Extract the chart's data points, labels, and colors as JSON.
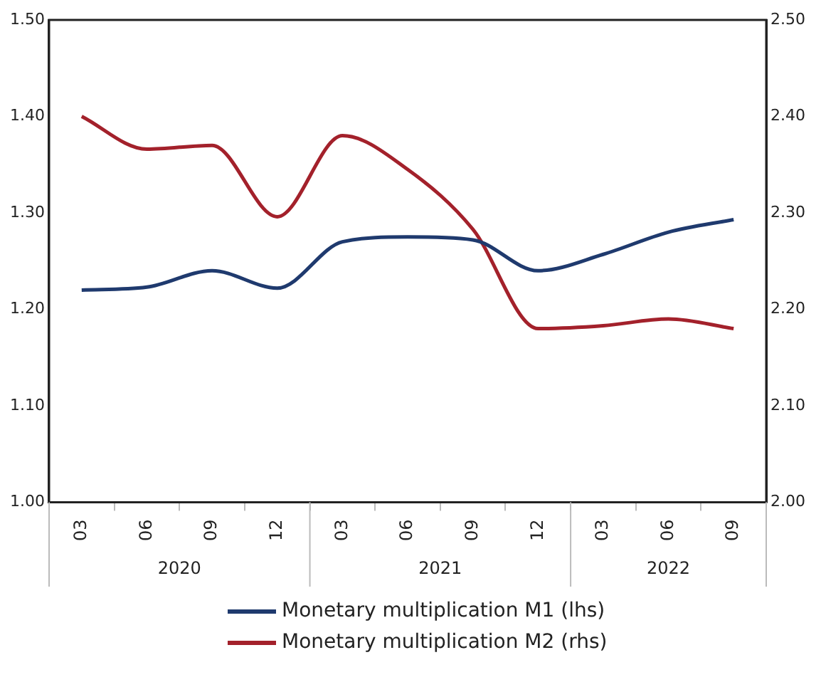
{
  "chart_data": {
    "type": "line",
    "categories": [
      "03",
      "06",
      "09",
      "12",
      "03",
      "06",
      "09",
      "12",
      "03",
      "06",
      "09"
    ],
    "series": [
      {
        "name": "Monetary multiplication M1 (lhs)",
        "color": "#1f3a6e",
        "values": [
          1.22,
          1.223,
          1.24,
          1.222,
          1.27,
          1.275,
          1.272,
          1.24,
          1.257,
          1.28,
          1.293
        ]
      },
      {
        "name": "Monetary multiplication M2 (rhs)",
        "color": "#a3212b",
        "axis": "y2",
        "values": [
          2.4,
          2.366,
          2.37,
          2.296,
          2.38,
          2.345,
          2.283,
          2.18,
          2.183,
          2.19,
          2.18
        ]
      }
    ],
    "ylim": [
      1,
      1.5
    ],
    "yticks": [
      {
        "value": 1,
        "label": "1.00"
      },
      {
        "value": 1.1,
        "label": "1.10"
      },
      {
        "value": 1.2,
        "label": "1.20"
      },
      {
        "value": 1.3,
        "label": "1.30"
      },
      {
        "value": 1.4,
        "label": "1.40"
      },
      {
        "value": 1.5,
        "label": "1.50"
      }
    ],
    "y2lim": [
      2,
      2.5
    ],
    "y2ticks": [
      {
        "value": 2,
        "label": "2.00"
      },
      {
        "value": 2.1,
        "label": "2.10"
      },
      {
        "value": 2.2,
        "label": "2.20"
      },
      {
        "value": 2.3,
        "label": "2.30"
      },
      {
        "value": 2.4,
        "label": "2.40"
      },
      {
        "value": 2.5,
        "label": "2.50"
      }
    ],
    "annotations": [
      "2020",
      "2021",
      "2022"
    ],
    "grid": false,
    "legend": "bottom",
    "marker": "none",
    "line_style": "solid"
  }
}
